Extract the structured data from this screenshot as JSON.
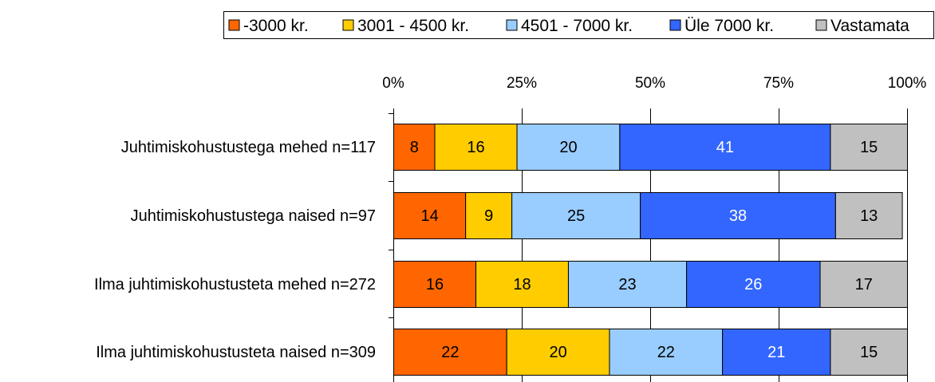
{
  "chart_data": {
    "type": "bar",
    "orientation": "horizontal",
    "stacked": true,
    "percent": true,
    "categories": [
      "Juhtimiskohustustega mehed n=117",
      "Juhtimiskohustustega naised n=97",
      "Ilma juhtimiskohustusteta mehed n=272",
      "Ilma juhtimiskohustusteta naised n=309"
    ],
    "series": [
      {
        "name": "-3000 kr.",
        "color": "#ff6600",
        "values": [
          8,
          14,
          16,
          22
        ]
      },
      {
        "name": "3001 - 4500 kr.",
        "color": "#ffcc00",
        "values": [
          16,
          9,
          18,
          20
        ]
      },
      {
        "name": "4501 - 7000 kr.",
        "color": "#99ccff",
        "values": [
          20,
          25,
          23,
          22
        ]
      },
      {
        "name": "Üle 7000 kr.",
        "color": "#3366ff",
        "values": [
          41,
          38,
          26,
          21
        ]
      },
      {
        "name": "Vastamata",
        "color": "#c0c0c0",
        "values": [
          15,
          13,
          17,
          15
        ]
      }
    ],
    "xticks": [
      "0%",
      "25%",
      "50%",
      "75%",
      "100%"
    ],
    "xlim": [
      0,
      100
    ],
    "grid": true,
    "legend_position": "top-right",
    "value_label_colors": [
      "#000000",
      "#000000",
      "#000000",
      "#ffffff",
      "#000000"
    ]
  }
}
